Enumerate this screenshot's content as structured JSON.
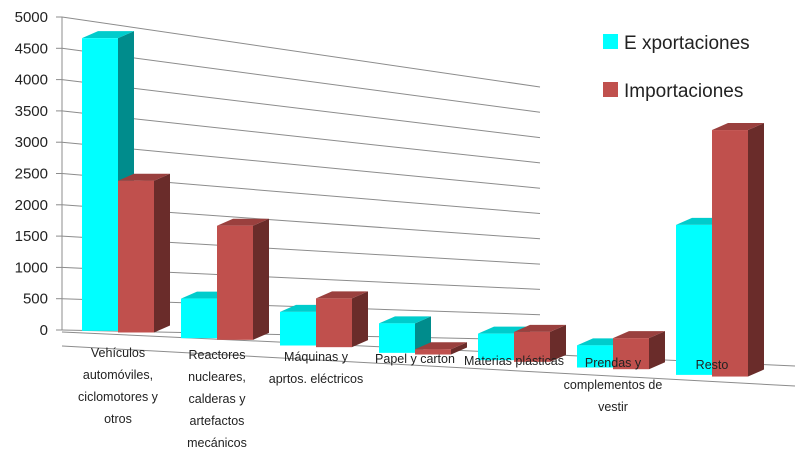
{
  "chart_data": {
    "type": "bar",
    "title": "",
    "xlabel": "",
    "ylabel": "",
    "ylim": [
      0,
      5000
    ],
    "yticks": [
      0,
      500,
      1000,
      1500,
      2000,
      2500,
      3000,
      3500,
      4000,
      4500,
      5000
    ],
    "grid": true,
    "legend_position": "top-right",
    "categories": [
      "Vehículos automóviles, ciclomotores y otros",
      "Reactores nucleares, calderas y artefactos mecánicos",
      "Máquinas y aprtos. eléctricos",
      "Papel y carton",
      "Materias plásticas",
      "Prendas y complementos de vestir",
      "Resto"
    ],
    "category_lines": [
      [
        "Vehículos",
        "automóviles,",
        "ciclomotores y",
        "otros"
      ],
      [
        "Reactores",
        "nucleares,",
        "calderas y",
        "artefactos",
        "mecánicos"
      ],
      [
        "Máquinas y",
        "aprtos. eléctricos"
      ],
      [
        "Papel y  carton"
      ],
      [
        "Materias plásticas"
      ],
      [
        "Prendas y",
        "complementos de",
        "vestir"
      ],
      [
        "Resto"
      ]
    ],
    "series": [
      {
        "name": "E xportaciones",
        "color": "#00FFFF",
        "values": [
          4650,
          620,
          520,
          450,
          400,
          330,
          2200
        ]
      },
      {
        "name": "Importaciones",
        "color": "#C0504D",
        "values": [
          2400,
          1780,
          750,
          80,
          450,
          460,
          3600
        ]
      }
    ]
  }
}
